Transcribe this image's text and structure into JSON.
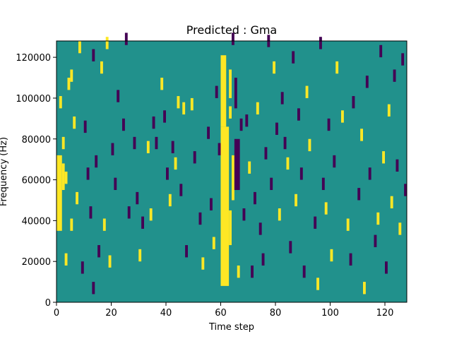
{
  "chart_data": {
    "type": "heatmap",
    "title": "Predicted : Gma",
    "xlabel": "Time step",
    "ylabel": "Frequency (Hz)",
    "xlim": [
      0,
      128
    ],
    "ylim": [
      0,
      128000
    ],
    "x_ticks": [
      0,
      20,
      40,
      60,
      80,
      100,
      120
    ],
    "y_ticks": [
      0,
      20000,
      40000,
      60000,
      80000,
      100000,
      120000
    ],
    "x_tick_labels": [
      "0",
      "20",
      "40",
      "60",
      "80",
      "100",
      "120"
    ],
    "y_tick_labels": [
      "0",
      "20000",
      "40000",
      "60000",
      "80000",
      "100000",
      "120000"
    ],
    "grid": false,
    "colormap": "viridis",
    "colors": {
      "background_value": "#21918c",
      "high_value": "#fde725",
      "low_value": "#440154"
    },
    "value_range": [
      -1,
      1
    ],
    "background_value": 0,
    "time_steps": 128,
    "frequency_bins": 128,
    "bin_hz": 1000,
    "band_cells": [
      {
        "x0": 60,
        "x1": 63,
        "y0": 8000,
        "y1": 86000,
        "value": 1
      },
      {
        "x0": 60,
        "x1": 62,
        "y0": 86000,
        "y1": 121000,
        "value": 1
      },
      {
        "x0": 63,
        "x1": 64,
        "y0": 100000,
        "y1": 114000,
        "value": 1
      },
      {
        "x0": 63,
        "x1": 64,
        "y0": 28000,
        "y1": 45000,
        "value": 1
      },
      {
        "x0": 64,
        "x1": 65,
        "y0": 50000,
        "y1": 72000,
        "value": 1
      },
      {
        "x0": 65,
        "x1": 67,
        "y0": 55000,
        "y1": 80000,
        "value": -1
      },
      {
        "x0": 65,
        "x1": 66,
        "y0": 95000,
        "y1": 110000,
        "value": -1
      },
      {
        "x0": 0,
        "x1": 2,
        "y0": 35000,
        "y1": 72000,
        "value": 1
      },
      {
        "x0": 2,
        "x1": 3,
        "y0": 55000,
        "y1": 68000,
        "value": 1
      }
    ],
    "scatter_cells": [
      {
        "x": 2,
        "y": 75000,
        "value": 1
      },
      {
        "x": 3,
        "y": 58000,
        "value": 1
      },
      {
        "x": 4,
        "y": 104000,
        "value": 1
      },
      {
        "x": 5,
        "y": 108000,
        "value": 1
      },
      {
        "x": 6,
        "y": 85000,
        "value": 1
      },
      {
        "x": 1,
        "y": 95000,
        "value": 1
      },
      {
        "x": 8,
        "y": 122000,
        "value": 1
      },
      {
        "x": 7,
        "y": 48000,
        "value": 1
      },
      {
        "x": 3,
        "y": 18000,
        "value": 1
      },
      {
        "x": 5,
        "y": 35000,
        "value": 1
      },
      {
        "x": 9,
        "y": 14000,
        "value": -1
      },
      {
        "x": 10,
        "y": 83000,
        "value": -1
      },
      {
        "x": 11,
        "y": 60000,
        "value": -1
      },
      {
        "x": 12,
        "y": 41000,
        "value": -1
      },
      {
        "x": 13,
        "y": 118000,
        "value": -1
      },
      {
        "x": 13,
        "y": 4000,
        "value": -1
      },
      {
        "x": 14,
        "y": 66000,
        "value": -1
      },
      {
        "x": 15,
        "y": 22000,
        "value": -1
      },
      {
        "x": 16,
        "y": 112000,
        "value": 1
      },
      {
        "x": 17,
        "y": 35000,
        "value": 1
      },
      {
        "x": 18,
        "y": 124000,
        "value": 1
      },
      {
        "x": 19,
        "y": 17000,
        "value": 1
      },
      {
        "x": 20,
        "y": 72000,
        "value": -1
      },
      {
        "x": 21,
        "y": 55000,
        "value": -1
      },
      {
        "x": 22,
        "y": 98000,
        "value": -1
      },
      {
        "x": 24,
        "y": 84000,
        "value": -1
      },
      {
        "x": 25,
        "y": 126000,
        "value": -1
      },
      {
        "x": 26,
        "y": 41000,
        "value": -1
      },
      {
        "x": 28,
        "y": 75000,
        "value": -1
      },
      {
        "x": 29,
        "y": 48000,
        "value": -1
      },
      {
        "x": 30,
        "y": 20000,
        "value": 1
      },
      {
        "x": 31,
        "y": 36000,
        "value": -1
      },
      {
        "x": 33,
        "y": 73000,
        "value": 1
      },
      {
        "x": 34,
        "y": 40000,
        "value": 1
      },
      {
        "x": 35,
        "y": 85000,
        "value": -1
      },
      {
        "x": 36,
        "y": 75000,
        "value": -1
      },
      {
        "x": 38,
        "y": 104000,
        "value": 1
      },
      {
        "x": 39,
        "y": 88000,
        "value": -1
      },
      {
        "x": 40,
        "y": 60000,
        "value": -1
      },
      {
        "x": 41,
        "y": 47000,
        "value": 1
      },
      {
        "x": 42,
        "y": 73000,
        "value": -1
      },
      {
        "x": 43,
        "y": 65000,
        "value": 1
      },
      {
        "x": 44,
        "y": 95000,
        "value": 1
      },
      {
        "x": 45,
        "y": 52000,
        "value": -1
      },
      {
        "x": 46,
        "y": 92000,
        "value": 1
      },
      {
        "x": 47,
        "y": 22000,
        "value": -1
      },
      {
        "x": 49,
        "y": 94000,
        "value": 1
      },
      {
        "x": 50,
        "y": 68000,
        "value": -1
      },
      {
        "x": 52,
        "y": 38000,
        "value": -1
      },
      {
        "x": 53,
        "y": 16000,
        "value": 1
      },
      {
        "x": 55,
        "y": 80000,
        "value": -1
      },
      {
        "x": 56,
        "y": 45000,
        "value": -1
      },
      {
        "x": 57,
        "y": 26000,
        "value": 1
      },
      {
        "x": 58,
        "y": 100000,
        "value": -1
      },
      {
        "x": 59,
        "y": 72000,
        "value": -1
      },
      {
        "x": 68,
        "y": 40000,
        "value": -1
      },
      {
        "x": 69,
        "y": 86000,
        "value": -1
      },
      {
        "x": 70,
        "y": 63000,
        "value": 1
      },
      {
        "x": 71,
        "y": 12000,
        "value": -1
      },
      {
        "x": 72,
        "y": 48000,
        "value": -1
      },
      {
        "x": 73,
        "y": 92000,
        "value": 1
      },
      {
        "x": 74,
        "y": 33000,
        "value": -1
      },
      {
        "x": 75,
        "y": 18000,
        "value": -1
      },
      {
        "x": 76,
        "y": 70000,
        "value": -1
      },
      {
        "x": 77,
        "y": 125000,
        "value": -1
      },
      {
        "x": 78,
        "y": 55000,
        "value": -1
      },
      {
        "x": 79,
        "y": 112000,
        "value": 1
      },
      {
        "x": 80,
        "y": 82000,
        "value": -1
      },
      {
        "x": 81,
        "y": 40000,
        "value": 1
      },
      {
        "x": 82,
        "y": 97000,
        "value": -1
      },
      {
        "x": 83,
        "y": 75000,
        "value": -1
      },
      {
        "x": 84,
        "y": 65000,
        "value": 1
      },
      {
        "x": 85,
        "y": 24000,
        "value": -1
      },
      {
        "x": 86,
        "y": 117000,
        "value": -1
      },
      {
        "x": 87,
        "y": 47000,
        "value": 1
      },
      {
        "x": 88,
        "y": 89000,
        "value": -1
      },
      {
        "x": 89,
        "y": 60000,
        "value": -1
      },
      {
        "x": 90,
        "y": 12000,
        "value": -1
      },
      {
        "x": 91,
        "y": 100000,
        "value": 1
      },
      {
        "x": 92,
        "y": 74000,
        "value": 1
      },
      {
        "x": 94,
        "y": 36000,
        "value": -1
      },
      {
        "x": 95,
        "y": 6000,
        "value": 1
      },
      {
        "x": 96,
        "y": 124000,
        "value": -1
      },
      {
        "x": 97,
        "y": 55000,
        "value": -1
      },
      {
        "x": 98,
        "y": 43000,
        "value": 1
      },
      {
        "x": 99,
        "y": 84000,
        "value": -1
      },
      {
        "x": 100,
        "y": 20000,
        "value": 1
      },
      {
        "x": 101,
        "y": 66000,
        "value": -1
      },
      {
        "x": 102,
        "y": 112000,
        "value": 1
      },
      {
        "x": 104,
        "y": 88000,
        "value": 1
      },
      {
        "x": 106,
        "y": 35000,
        "value": 1
      },
      {
        "x": 107,
        "y": 18000,
        "value": -1
      },
      {
        "x": 108,
        "y": 95000,
        "value": -1
      },
      {
        "x": 110,
        "y": 50000,
        "value": -1
      },
      {
        "x": 111,
        "y": 79000,
        "value": 1
      },
      {
        "x": 112,
        "y": 4000,
        "value": 1
      },
      {
        "x": 113,
        "y": 105000,
        "value": -1
      },
      {
        "x": 114,
        "y": 60000,
        "value": -1
      },
      {
        "x": 116,
        "y": 27000,
        "value": -1
      },
      {
        "x": 117,
        "y": 38000,
        "value": 1
      },
      {
        "x": 118,
        "y": 120000,
        "value": -1
      },
      {
        "x": 119,
        "y": 68000,
        "value": 1
      },
      {
        "x": 120,
        "y": 14000,
        "value": -1
      },
      {
        "x": 121,
        "y": 91000,
        "value": 1
      },
      {
        "x": 122,
        "y": 46000,
        "value": 1
      },
      {
        "x": 123,
        "y": 108000,
        "value": -1
      },
      {
        "x": 124,
        "y": 64000,
        "value": -1
      },
      {
        "x": 125,
        "y": 33000,
        "value": 1
      },
      {
        "x": 126,
        "y": 116000,
        "value": -1
      },
      {
        "x": 127,
        "y": 52000,
        "value": -1
      },
      {
        "x": 63,
        "y": 90000,
        "value": 1
      },
      {
        "x": 64,
        "y": 126000,
        "value": -1
      },
      {
        "x": 66,
        "y": 12000,
        "value": 1
      },
      {
        "x": 67,
        "y": 84000,
        "value": -1
      }
    ]
  }
}
